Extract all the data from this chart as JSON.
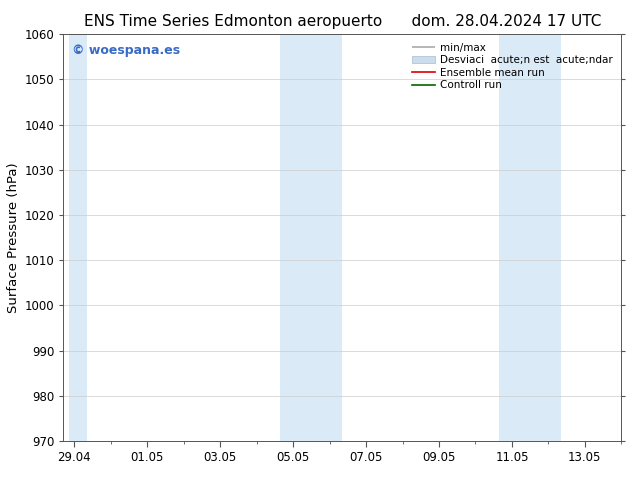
{
  "title_left": "ENS Time Series Edmonton aeropuerto",
  "title_right": "dom. 28.04.2024 17 UTC",
  "ylabel": "Surface Pressure (hPa)",
  "ylim": [
    970,
    1060
  ],
  "yticks": [
    970,
    980,
    990,
    1000,
    1010,
    1020,
    1030,
    1040,
    1050,
    1060
  ],
  "xtick_labels": [
    "29.04",
    "01.05",
    "03.05",
    "05.05",
    "07.05",
    "09.05",
    "11.05",
    "13.05"
  ],
  "xtick_positions": [
    0,
    2,
    4,
    6,
    8,
    10,
    12,
    14
  ],
  "watermark": "© woespana.es",
  "watermark_color": "#3a6bc4",
  "shaded_bands": [
    {
      "x_start": -0.15,
      "x_end": 0.35
    },
    {
      "x_start": 5.65,
      "x_end": 7.35
    },
    {
      "x_start": 11.65,
      "x_end": 13.35
    }
  ],
  "shaded_color": "#daeaf7",
  "background_color": "#ffffff",
  "legend_label_minmax": "min/max",
  "legend_label_std": "Desviaci  acute;n est  acute;ndar",
  "legend_label_ensemble": "Ensemble mean run",
  "legend_label_control": "Controll run",
  "legend_color_minmax": "#aaaaaa",
  "legend_color_std": "#ccddef",
  "legend_color_ensemble": "#dd0000",
  "legend_color_control": "#006600",
  "title_fontsize": 11,
  "tick_fontsize": 8.5,
  "label_fontsize": 9.5,
  "watermark_fontsize": 9,
  "legend_fontsize": 7.5
}
